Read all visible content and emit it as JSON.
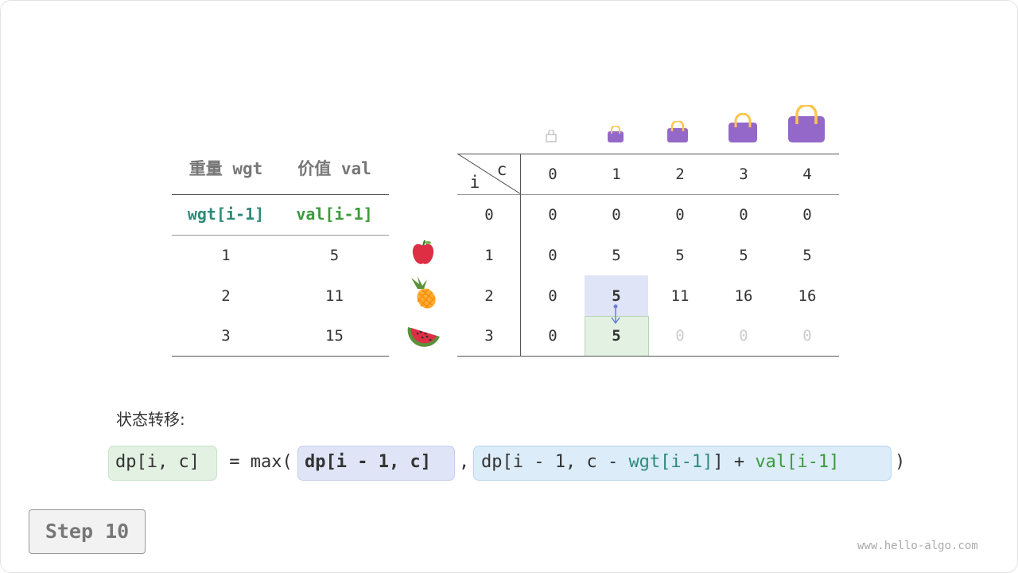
{
  "left_table": {
    "headers": [
      "重量 wgt",
      "价值 val"
    ],
    "subheaders": [
      "wgt[i-1]",
      "val[i-1]"
    ],
    "rows": [
      [
        "1",
        "5"
      ],
      [
        "2",
        "11"
      ],
      [
        "3",
        "15"
      ]
    ]
  },
  "items": [
    "apple-icon",
    "pineapple-icon",
    "watermelon-icon"
  ],
  "dp_table": {
    "corner_c": "c",
    "corner_i": "i",
    "col_headers": [
      "0",
      "1",
      "2",
      "3",
      "4"
    ],
    "row_headers": [
      "0",
      "1",
      "2",
      "3"
    ],
    "rows": [
      [
        "0",
        "0",
        "0",
        "0",
        "0"
      ],
      [
        "0",
        "5",
        "5",
        "5",
        "5"
      ],
      [
        "0",
        "5",
        "11",
        "16",
        "16"
      ],
      [
        "0",
        "5",
        "0",
        "0",
        "0"
      ]
    ]
  },
  "label": "状态转移:",
  "formula": {
    "lhs": "dp[i, c]",
    "eq": " = max(",
    "arg1": "dp[i - 1, c]",
    "comma": ",",
    "arg2a": "dp[i - 1, c - ",
    "arg2_wgt": "wgt[i-1]",
    "arg2b": "] + ",
    "arg2_val": "val[i-1]",
    "close": ")"
  },
  "colors": {
    "teal": "#2e8b7a",
    "green": "#3c9a3c",
    "purple": "#9468c8",
    "highlight_blue": "#e0e4f7",
    "highlight_green": "#e3f1e3"
  },
  "step_label": "Step 10",
  "watermark": "www.hello-algo.com"
}
